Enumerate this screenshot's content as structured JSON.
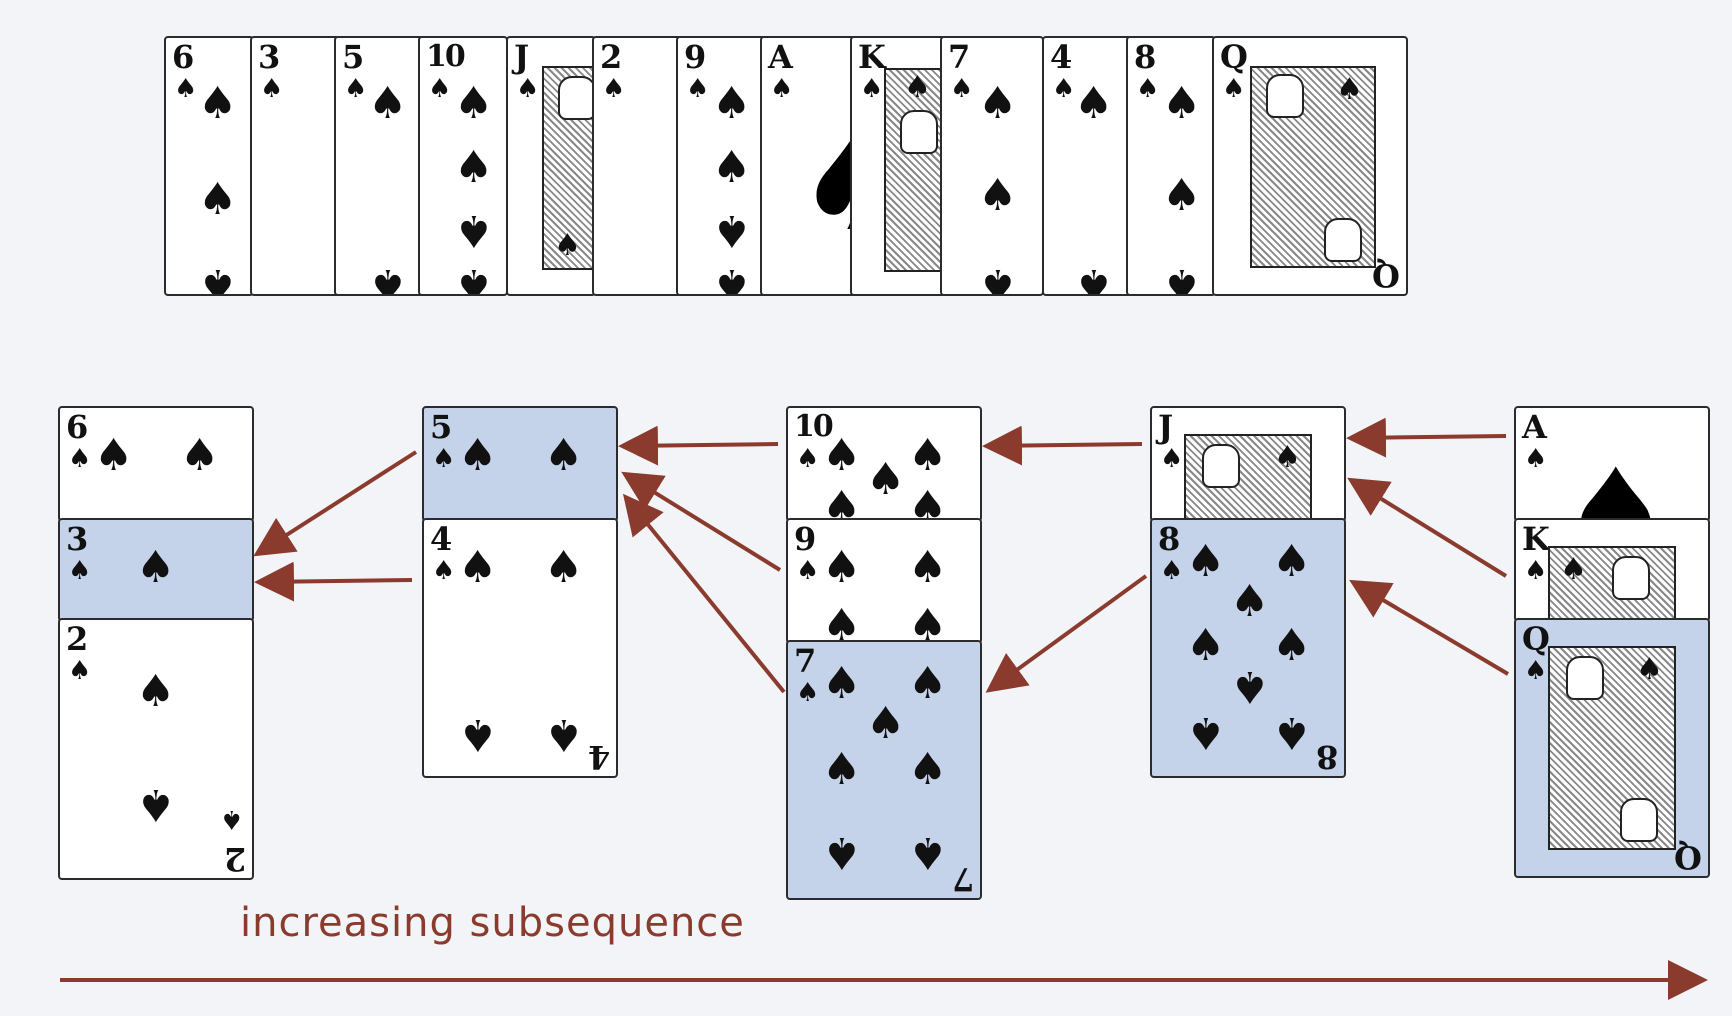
{
  "top_row": [
    {
      "rank": "6",
      "suit": "♠"
    },
    {
      "rank": "3",
      "suit": "♠"
    },
    {
      "rank": "5",
      "suit": "♠"
    },
    {
      "rank": "10",
      "suit": "♠"
    },
    {
      "rank": "J",
      "suit": "♠"
    },
    {
      "rank": "2",
      "suit": "♠"
    },
    {
      "rank": "9",
      "suit": "♠"
    },
    {
      "rank": "A",
      "suit": "♠"
    },
    {
      "rank": "K",
      "suit": "♠"
    },
    {
      "rank": "7",
      "suit": "♠"
    },
    {
      "rank": "4",
      "suit": "♠"
    },
    {
      "rank": "8",
      "suit": "♠"
    },
    {
      "rank": "Q",
      "suit": "♠"
    }
  ],
  "piles": [
    {
      "cards": [
        {
          "rank": "6",
          "highlighted": false
        },
        {
          "rank": "3",
          "highlighted": true
        },
        {
          "rank": "2",
          "highlighted": false
        }
      ]
    },
    {
      "cards": [
        {
          "rank": "5",
          "highlighted": true
        },
        {
          "rank": "4",
          "highlighted": false
        }
      ]
    },
    {
      "cards": [
        {
          "rank": "10",
          "highlighted": false
        },
        {
          "rank": "9",
          "highlighted": false
        },
        {
          "rank": "7",
          "highlighted": true
        }
      ]
    },
    {
      "cards": [
        {
          "rank": "J",
          "highlighted": false
        },
        {
          "rank": "8",
          "highlighted": true
        }
      ]
    },
    {
      "cards": [
        {
          "rank": "A",
          "highlighted": false
        },
        {
          "rank": "K",
          "highlighted": false
        },
        {
          "rank": "Q",
          "highlighted": true
        }
      ]
    }
  ],
  "label": "increasing subsequence",
  "colors": {
    "arrow": "#8a3b2d",
    "highlight": "#c5d3ea"
  }
}
